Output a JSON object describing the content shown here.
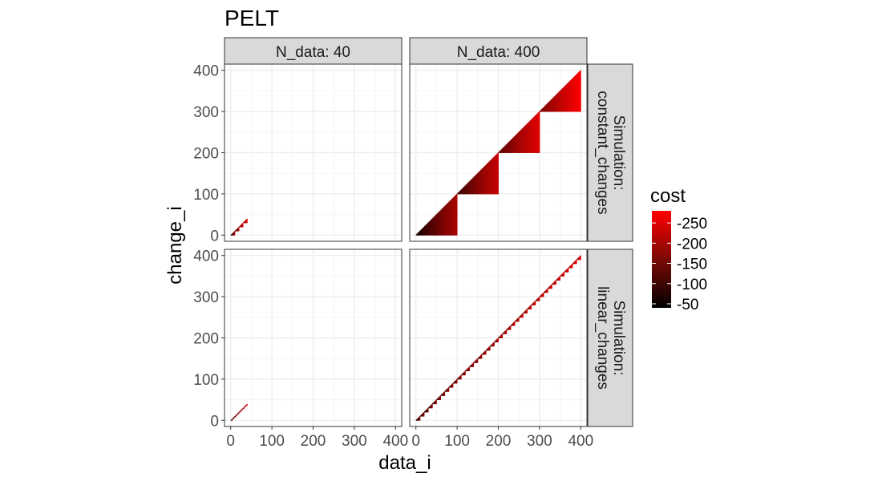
{
  "chart_data": {
    "type": "heatmap",
    "title": "PELT",
    "xlabel": "data_i",
    "ylabel": "change_i",
    "xlim": [
      -15,
      415
    ],
    "ylim": [
      -15,
      415
    ],
    "x_ticks": [
      0,
      100,
      200,
      300,
      400
    ],
    "y_ticks": [
      0,
      100,
      200,
      300,
      400
    ],
    "grid": true,
    "facet_cols": [
      {
        "label": "N_data: 40",
        "n_data": 40
      },
      {
        "label": "N_data: 400",
        "n_data": 400
      }
    ],
    "facet_rows": [
      {
        "label_line1": "Simulation:",
        "label_line2": "constant_changes",
        "simulation": "constant_changes",
        "segment_length": 100
      },
      {
        "label_line1": "Simulation:",
        "label_line2": "linear_changes",
        "simulation": "linear_changes",
        "segment_length": 10
      }
    ],
    "cost_range": [
      -280,
      -40
    ],
    "legend": {
      "title": "cost",
      "position": "right",
      "breaks": [
        -50,
        -100,
        -150,
        -200,
        -250
      ],
      "colors": [
        "#ff0000",
        "#000000"
      ]
    },
    "description": "Each tile (data_i, change_i) with change_i <= data_i and change_i >= last segment start is colored by cost."
  },
  "colors": {
    "panel_border": "#333333",
    "strip_fill": "#d9d9d9",
    "grid_major": "#ebebeb",
    "grid_minor": "#f5f5f5"
  }
}
